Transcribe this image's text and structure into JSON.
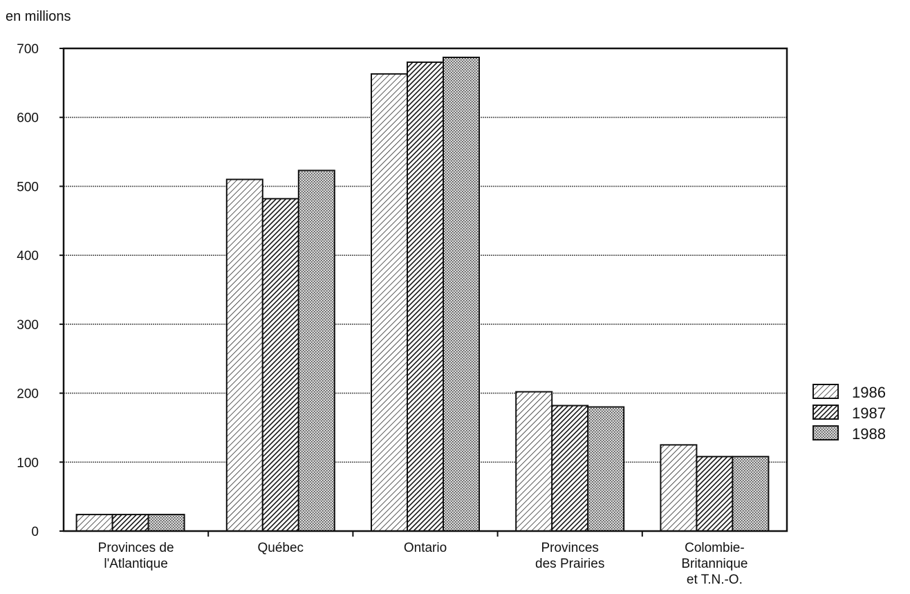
{
  "chart_data": {
    "type": "bar",
    "title": "",
    "ylabel": "en millions",
    "xlabel": "",
    "ylim": [
      0,
      700
    ],
    "yticks": [
      0,
      100,
      200,
      300,
      400,
      500,
      600,
      700
    ],
    "grid": true,
    "legend_position": "right",
    "categories": [
      [
        "Provinces de",
        "l'Atlantique"
      ],
      [
        "Québec"
      ],
      [
        "Ontario"
      ],
      [
        "Provinces",
        "des Prairies"
      ],
      [
        "Colombie-",
        "Britannique",
        "et T.N.-O."
      ]
    ],
    "series": [
      {
        "name": "1986",
        "pattern": "diagonal-light",
        "values": [
          24,
          510,
          663,
          202,
          125
        ]
      },
      {
        "name": "1987",
        "pattern": "diagonal-dark",
        "values": [
          24,
          482,
          680,
          182,
          108
        ]
      },
      {
        "name": "1988",
        "pattern": "crosshatch",
        "values": [
          24,
          523,
          687,
          180,
          108
        ]
      }
    ]
  }
}
